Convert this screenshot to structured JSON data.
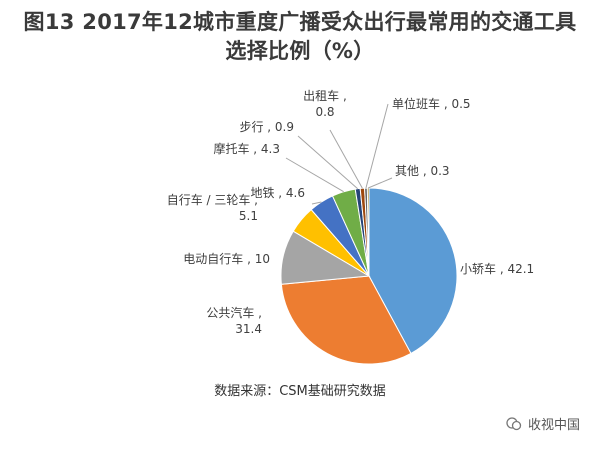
{
  "title_line1": "图13 2017年12城市重度广播受众出行最常用的交通工具",
  "title_line2": "选择比例（%）",
  "source_note": "数据来源：CSM基础研究数据",
  "watermark": "收视中国",
  "colors": {
    "小轿车": "#5b9bd5",
    "公共汽车": "#ed7d31",
    "电动自行车": "#a5a5a5",
    "自行车/三轮车": "#ffc000",
    "地铁": "#4472c4",
    "摩托车": "#70ad47",
    "步行": "#264478",
    "出租车": "#9e480e",
    "单位班车": "#636363",
    "其他": "#997300"
  },
  "chart_data": {
    "type": "pie",
    "title": "图13 2017年12城市重度广播受众出行最常用的交通工具选择比例（%）",
    "unit": "%",
    "slices": [
      {
        "name": "小轿车",
        "value": 42.1,
        "label": [
          "小轿车 , 42.1"
        ]
      },
      {
        "name": "公共汽车",
        "value": 31.4,
        "label": [
          "公共汽车 ,",
          "31.4"
        ]
      },
      {
        "name": "电动自行车",
        "value": 10,
        "label": [
          "电动自行车 , 10"
        ]
      },
      {
        "name": "自行车/三轮车",
        "value": 5.1,
        "label": [
          "自行车 / 三轮车 ,",
          "5.1"
        ]
      },
      {
        "name": "地铁",
        "value": 4.6,
        "label": [
          "地铁 , 4.6"
        ]
      },
      {
        "name": "摩托车",
        "value": 4.3,
        "label": [
          "摩托车 , 4.3"
        ]
      },
      {
        "name": "步行",
        "value": 0.9,
        "label": [
          "步行 , 0.9"
        ]
      },
      {
        "name": "出租车",
        "value": 0.8,
        "label": [
          "出租车 ,",
          "0.8"
        ]
      },
      {
        "name": "单位班车",
        "value": 0.5,
        "label": [
          "单位班车 , 0.5"
        ]
      },
      {
        "name": "其他",
        "value": 0.3,
        "label": [
          "其他 , 0.3"
        ]
      }
    ]
  }
}
